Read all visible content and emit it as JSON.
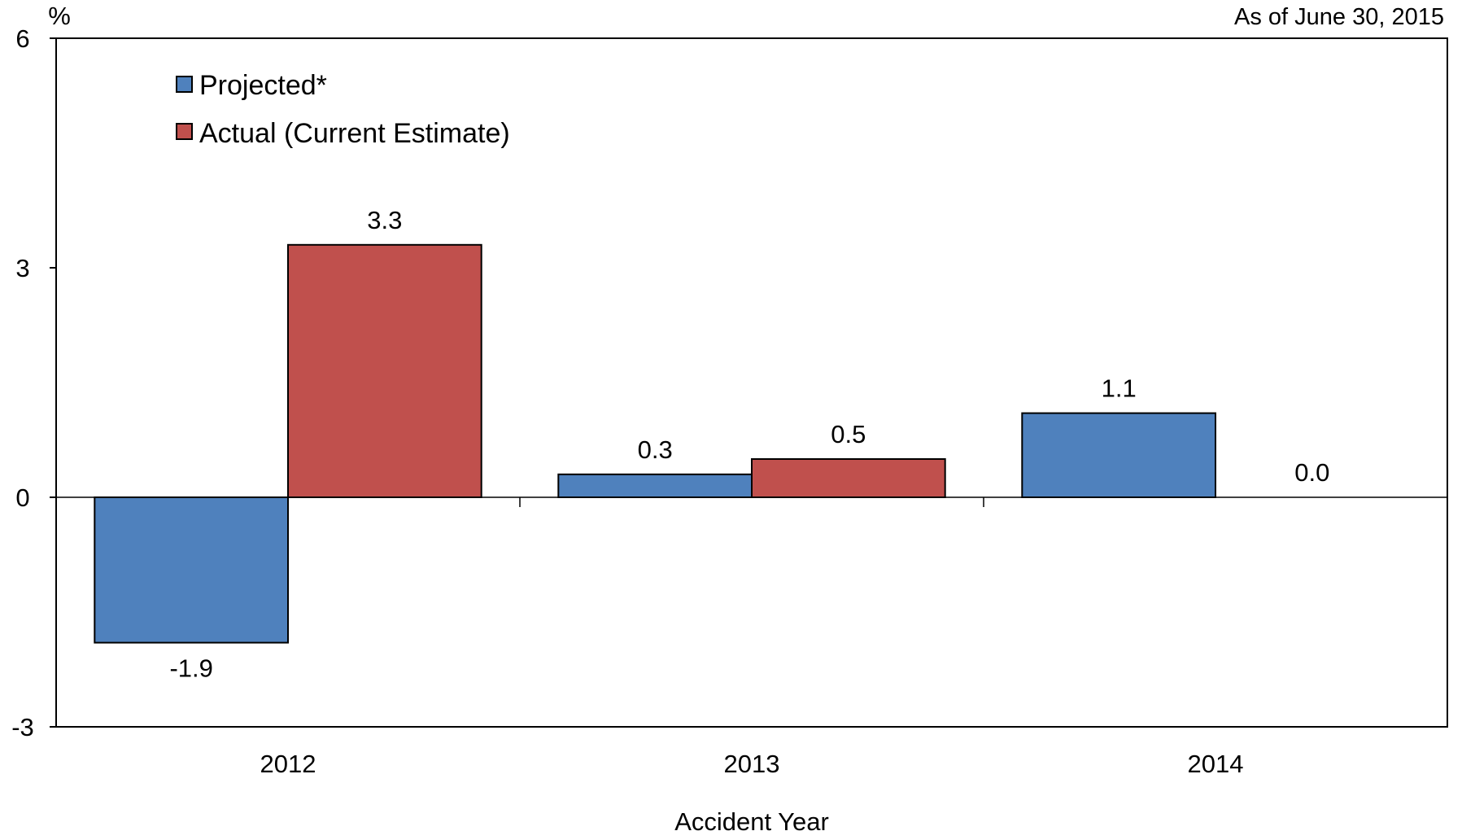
{
  "chart_data": {
    "type": "bar",
    "unit_label": "%",
    "as_of": "As of June 30, 2015",
    "xlabel": "Accident Year",
    "ylabel": "",
    "categories": [
      "2012",
      "2013",
      "2014"
    ],
    "series": [
      {
        "name": "Projected*",
        "color": "#4f81bd",
        "values": [
          -1.9,
          0.3,
          1.1
        ],
        "labels": [
          "-1.9",
          "0.3",
          "1.1"
        ]
      },
      {
        "name": "Actual (Current Estimate)",
        "color": "#c0504d",
        "values": [
          3.3,
          0.5,
          0.0
        ],
        "labels": [
          "3.3",
          "0.5",
          "0.0"
        ]
      }
    ],
    "ylim": [
      -3,
      6
    ],
    "yticks": [
      "6",
      "3",
      "0",
      "-3"
    ],
    "legend_position": "top-left",
    "grid": false
  }
}
